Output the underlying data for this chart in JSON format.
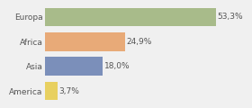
{
  "categories": [
    "Europa",
    "Africa",
    "Asia",
    "America"
  ],
  "values": [
    53.3,
    24.9,
    18.0,
    3.7
  ],
  "labels": [
    "53,3%",
    "24,9%",
    "18,0%",
    "3,7%"
  ],
  "bar_colors": [
    "#a8bb8a",
    "#e8aa78",
    "#7b8fba",
    "#e8d060"
  ],
  "background_color": "#f0f0f0",
  "xlim": [
    0,
    63
  ],
  "label_fontsize": 6.5,
  "tick_fontsize": 6.5,
  "bar_height": 0.75
}
